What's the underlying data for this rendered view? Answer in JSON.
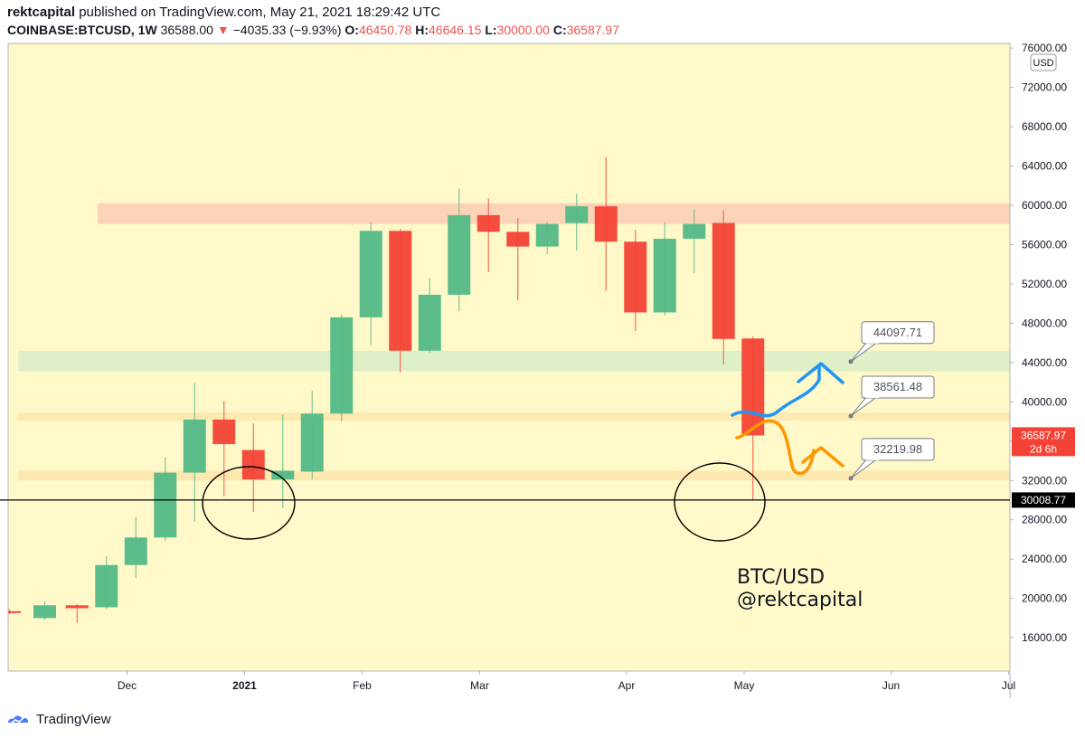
{
  "header": {
    "author": "rektcapital",
    "published_text": "published on TradingView.com, May 21, 2021 18:29:42 UTC",
    "symbol": "COINBASE:BTCUSD, 1W",
    "last": "36588.00",
    "change_arrow": "▼",
    "change": "−4035.33 (−9.93%)",
    "o_label": "O:",
    "o_value": "46450.78",
    "h_label": "H:",
    "h_value": "46646.15",
    "l_label": "L:",
    "l_value": "30000.00",
    "c_label": "C:",
    "c_value": "36587.97"
  },
  "footer": {
    "brand": "TradingView",
    "logo_icon": "tradingview-logo-icon"
  },
  "colors": {
    "background": "#fff9c9",
    "up": "#53b987",
    "down": "#f44336",
    "zone_top": "#fbd3b6",
    "zone_green": "#dfefc8",
    "zone_mid": "#fde9b0",
    "blue_path": "#2196f3",
    "orange_path": "#ff9800"
  },
  "chart_data": {
    "type": "candlestick",
    "title": "",
    "currency_badge": "USD",
    "ylim": [
      12000,
      77000
    ],
    "y_ticks": [
      16000,
      20000,
      24000,
      28000,
      32000,
      36000,
      40000,
      44000,
      48000,
      52000,
      56000,
      60000,
      64000,
      68000,
      72000,
      76000
    ],
    "y_tick_labels": [
      "16000.00",
      "20000.00",
      "24000.00",
      "28000.00",
      "32000.00",
      "36000.00",
      "40000.00",
      "44000.00",
      "48000.00",
      "52000.00",
      "56000.00",
      "60000.00",
      "64000.00",
      "68000.00",
      "72000.00",
      "76000.00"
    ],
    "x_labels": [
      {
        "label": "Dec",
        "x": 3.5,
        "bold": false
      },
      {
        "label": "2021",
        "x": 7.5,
        "bold": true
      },
      {
        "label": "Feb",
        "x": 11.5,
        "bold": false
      },
      {
        "label": "Mar",
        "x": 15.5,
        "bold": false
      },
      {
        "label": "Apr",
        "x": 20.5,
        "bold": false
      },
      {
        "label": "May",
        "x": 24.5,
        "bold": false
      },
      {
        "label": "Jun",
        "x": 29.5,
        "bold": false
      },
      {
        "label": "Jul",
        "x": 33.5,
        "bold": false
      }
    ],
    "x_range": [
      -0.3,
      35.5
    ],
    "candles": [
      {
        "x": -0.6,
        "o": 18700,
        "h": 18900,
        "l": 18400,
        "c": 18600
      },
      {
        "x": 0.6,
        "o": 18000,
        "h": 19700,
        "l": 17800,
        "c": 19300
      },
      {
        "x": 1.7,
        "o": 19300,
        "h": 19400,
        "l": 17500,
        "c": 19000
      },
      {
        "x": 2.7,
        "o": 19100,
        "h": 24300,
        "l": 18900,
        "c": 23400
      },
      {
        "x": 3.7,
        "o": 23400,
        "h": 28300,
        "l": 22100,
        "c": 26200
      },
      {
        "x": 4.7,
        "o": 26200,
        "h": 34400,
        "l": 25800,
        "c": 32800
      },
      {
        "x": 5.7,
        "o": 32800,
        "h": 41900,
        "l": 27800,
        "c": 38200
      },
      {
        "x": 6.7,
        "o": 38200,
        "h": 40100,
        "l": 30400,
        "c": 35700
      },
      {
        "x": 7.7,
        "o": 35100,
        "h": 37800,
        "l": 28800,
        "c": 32100
      },
      {
        "x": 8.7,
        "o": 32100,
        "h": 38700,
        "l": 29200,
        "c": 33000
      },
      {
        "x": 9.7,
        "o": 32900,
        "h": 41100,
        "l": 32100,
        "c": 38800
      },
      {
        "x": 10.7,
        "o": 38800,
        "h": 48900,
        "l": 38000,
        "c": 48600
      },
      {
        "x": 11.7,
        "o": 48600,
        "h": 58300,
        "l": 45800,
        "c": 57400
      },
      {
        "x": 12.7,
        "o": 57400,
        "h": 57600,
        "l": 43000,
        "c": 45200
      },
      {
        "x": 13.7,
        "o": 45200,
        "h": 52600,
        "l": 45000,
        "c": 50900
      },
      {
        "x": 14.7,
        "o": 50900,
        "h": 61700,
        "l": 49200,
        "c": 59000
      },
      {
        "x": 15.7,
        "o": 59000,
        "h": 60700,
        "l": 53200,
        "c": 57300
      },
      {
        "x": 16.7,
        "o": 57300,
        "h": 58700,
        "l": 50300,
        "c": 55800
      },
      {
        "x": 17.7,
        "o": 55800,
        "h": 58300,
        "l": 55000,
        "c": 58100
      },
      {
        "x": 18.7,
        "o": 58200,
        "h": 61200,
        "l": 55400,
        "c": 59900
      },
      {
        "x": 19.7,
        "o": 59900,
        "h": 64900,
        "l": 51300,
        "c": 56300
      },
      {
        "x": 20.7,
        "o": 56300,
        "h": 57500,
        "l": 47200,
        "c": 49100
      },
      {
        "x": 21.7,
        "o": 49100,
        "h": 58300,
        "l": 48800,
        "c": 56600
      },
      {
        "x": 22.7,
        "o": 56600,
        "h": 59600,
        "l": 53100,
        "c": 58100
      },
      {
        "x": 23.7,
        "o": 58200,
        "h": 59500,
        "l": 43800,
        "c": 46400
      },
      {
        "x": 24.7,
        "o": 46450,
        "h": 46646,
        "l": 30000,
        "c": 36588
      }
    ],
    "zones": [
      {
        "name": "resistance-zone-60k",
        "y0": 58100,
        "y1": 60200,
        "x0": 2.4,
        "color": "#fbd3b6"
      },
      {
        "name": "support-zone-44k",
        "y0": 43100,
        "y1": 45200,
        "x0": -0.3,
        "color": "#dfefc8"
      },
      {
        "name": "support-zone-38k",
        "y0": 38100,
        "y1": 38900,
        "x0": -0.3,
        "color": "#fde9b0"
      },
      {
        "name": "support-zone-32k",
        "y0": 32000,
        "y1": 33000,
        "x0": -0.3,
        "color": "#fde9b0"
      }
    ],
    "horizontal_line": {
      "value": 30008.77,
      "label": "30008.77"
    },
    "price_badge": {
      "value": 36587.97,
      "label": "36587.97",
      "countdown": "2d 6h"
    },
    "callouts": [
      {
        "label": "44097.71",
        "value": 44097.71
      },
      {
        "label": "38561.48",
        "value": 38561.48
      },
      {
        "label": "32219.98",
        "value": 32219.98
      }
    ],
    "watermark": [
      "BTC/USD",
      "@rektcapital"
    ]
  }
}
